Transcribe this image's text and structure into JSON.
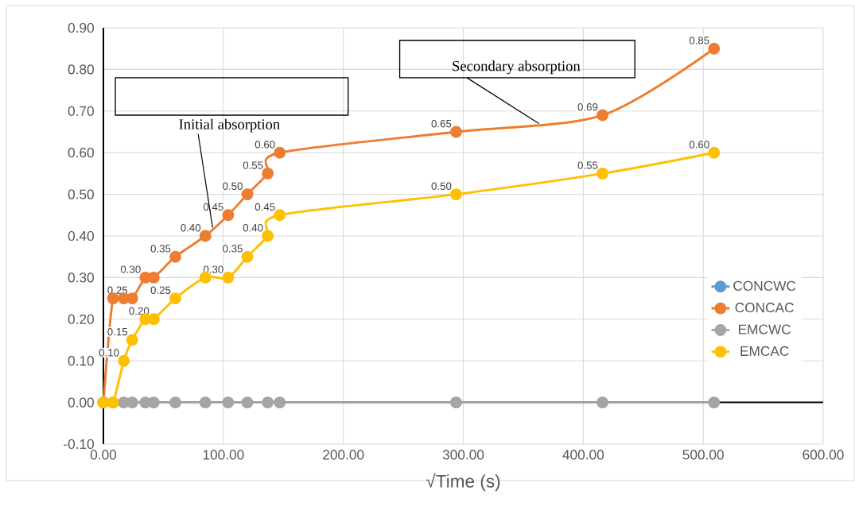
{
  "chart_data": {
    "type": "line",
    "xlabel": "√Time (s)",
    "x": [
      0,
      8,
      17,
      24,
      35,
      42,
      60,
      85,
      104,
      120,
      137,
      147,
      294,
      416,
      509
    ],
    "xlim": [
      0,
      600
    ],
    "xticks": [
      {
        "value": 0,
        "label": "0.00"
      },
      {
        "value": 100,
        "label": "100.00"
      },
      {
        "value": 200,
        "label": "200.00"
      },
      {
        "value": 300,
        "label": "300.00"
      },
      {
        "value": 400,
        "label": "400.00"
      },
      {
        "value": 500,
        "label": "500.00"
      },
      {
        "value": 600,
        "label": "600.00"
      }
    ],
    "ylim": [
      -0.1,
      0.9
    ],
    "yticks": [
      {
        "value": -0.1,
        "label": "-0.10"
      },
      {
        "value": 0,
        "label": "0.00"
      },
      {
        "value": 0.1,
        "label": "0.10"
      },
      {
        "value": 0.2,
        "label": "0.20"
      },
      {
        "value": 0.3,
        "label": "0.30"
      },
      {
        "value": 0.4,
        "label": "0.40"
      },
      {
        "value": 0.5,
        "label": "0.50"
      },
      {
        "value": 0.6,
        "label": "0.60"
      },
      {
        "value": 0.7,
        "label": "0.70"
      },
      {
        "value": 0.8,
        "label": "0.80"
      },
      {
        "value": 0.9,
        "label": "0.90"
      }
    ],
    "grid": true,
    "legend": "right",
    "marker": "circle",
    "line_style": "solid",
    "series": [
      {
        "name": "CONCWC",
        "color": "#5b9bd5",
        "values": [
          null,
          null,
          null,
          null,
          null,
          null,
          null,
          null,
          null,
          null,
          null,
          null,
          null,
          null,
          null
        ]
      },
      {
        "name": "CONCAC",
        "color": "#ed7d31",
        "values": [
          0,
          0.25,
          0.25,
          0.25,
          0.3,
          0.3,
          0.35,
          0.4,
          0.45,
          0.5,
          0.55,
          0.6,
          0.65,
          0.69,
          0.85
        ],
        "value_labels": [
          null,
          null,
          null,
          "0.25",
          "0.30",
          null,
          "0.35",
          "0.40",
          "0.45",
          "0.50",
          "0.55",
          "0.60",
          "0.65",
          "0.69",
          "0.85"
        ]
      },
      {
        "name": "EMCWC",
        "color": "#a5a5a5",
        "values": [
          0,
          0,
          0,
          0,
          0,
          0,
          0,
          0,
          0,
          0,
          0,
          0,
          0,
          0,
          0
        ]
      },
      {
        "name": "EMCAC",
        "color": "#ffc000",
        "values": [
          0,
          0,
          0.1,
          0.15,
          0.2,
          0.2,
          0.25,
          0.3,
          0.3,
          0.35,
          0.4,
          0.45,
          0.5,
          0.55,
          0.6
        ],
        "value_labels": [
          null,
          null,
          "0.10",
          "0.15",
          null,
          "0.20",
          "0.25",
          null,
          "0.30",
          "0.35",
          "0.40",
          "0.45",
          "0.50",
          "0.55",
          "0.60"
        ]
      }
    ],
    "annotations": [
      {
        "text": "Initial absorption",
        "x": 91,
        "y": 0.42
      },
      {
        "text": "Secondary absorption",
        "x": 363,
        "y": 0.67
      }
    ]
  }
}
